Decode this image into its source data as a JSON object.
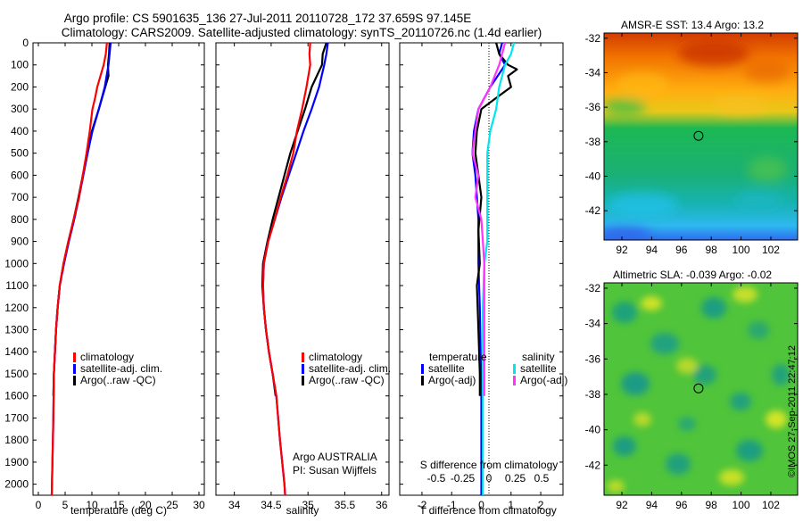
{
  "title": {
    "line1": "Argo profile: CS 5901635_136 27-Jul-2011 20110728_172 37.659S 97.145E",
    "line2": "Climatology: CARS2009. Satellite-adjusted climatology: synTS_20110726.nc (1.4d earlier)"
  },
  "depth_axis": {
    "ylim": [
      0,
      2050
    ],
    "ticks": [
      0,
      100,
      200,
      300,
      400,
      500,
      600,
      700,
      800,
      900,
      1000,
      1100,
      1200,
      1300,
      1400,
      1500,
      1600,
      1700,
      1800,
      1900,
      2000
    ]
  },
  "colors": {
    "climatology": "#ff0000",
    "satellite_adj": "#0000ff",
    "argo": "#000000",
    "salinity_satellite": "#00e5ee",
    "salinity_argo": "#ff33ff"
  },
  "chart_data": [
    {
      "type": "line",
      "xlabel": "temperature (deg C)",
      "xlim": [
        -1,
        31
      ],
      "xticks": [
        0,
        5,
        10,
        15,
        20,
        25,
        30
      ],
      "legend": [
        "climatology",
        "satellite-adj. clim.",
        "Argo(..raw -QC)"
      ],
      "series": [
        {
          "name": "climatology",
          "color": "#ff0000",
          "points": [
            [
              12.8,
              0
            ],
            [
              12.6,
              50
            ],
            [
              12.2,
              100
            ],
            [
              11.6,
              150
            ],
            [
              11.0,
              200
            ],
            [
              10.6,
              250
            ],
            [
              10.1,
              300
            ],
            [
              9.6,
              400
            ],
            [
              9.0,
              500
            ],
            [
              8.3,
              600
            ],
            [
              7.6,
              700
            ],
            [
              6.6,
              800
            ],
            [
              5.6,
              900
            ],
            [
              4.7,
              1000
            ],
            [
              4.0,
              1100
            ],
            [
              3.6,
              1200
            ],
            [
              3.3,
              1300
            ],
            [
              3.1,
              1400
            ],
            [
              2.9,
              1500
            ],
            [
              2.8,
              1700
            ],
            [
              2.5,
              2050
            ]
          ]
        },
        {
          "name": "satellite-adj. clim.",
          "color": "#0000ff",
          "points": [
            [
              13.5,
              0
            ],
            [
              13.3,
              50
            ],
            [
              13.1,
              100
            ],
            [
              12.4,
              200
            ],
            [
              11.3,
              300
            ],
            [
              10.1,
              400
            ],
            [
              9.2,
              500
            ],
            [
              8.4,
              600
            ],
            [
              7.6,
              700
            ],
            [
              6.7,
              800
            ],
            [
              5.7,
              900
            ],
            [
              4.8,
              1000
            ],
            [
              4.0,
              1100
            ],
            [
              3.6,
              1200
            ],
            [
              3.3,
              1300
            ],
            [
              3.1,
              1400
            ],
            [
              2.9,
              1500
            ],
            [
              2.8,
              1700
            ],
            [
              2.5,
              2050
            ]
          ]
        },
        {
          "name": "Argo(..raw -QC)",
          "color": "#000000",
          "points": [
            [
              13.3,
              0
            ],
            [
              13.2,
              50
            ],
            [
              13.0,
              100
            ],
            [
              13.1,
              150
            ],
            [
              12.5,
              200
            ],
            [
              11.3,
              300
            ],
            [
              10.0,
              400
            ],
            [
              9.2,
              500
            ],
            [
              8.3,
              600
            ],
            [
              7.5,
              700
            ],
            [
              6.6,
              800
            ],
            [
              5.6,
              900
            ],
            [
              4.7,
              1000
            ],
            [
              4.0,
              1100
            ],
            [
              3.6,
              1200
            ],
            [
              3.3,
              1300
            ],
            [
              3.1,
              1400
            ],
            [
              2.9,
              1500
            ],
            [
              2.8,
              1600
            ]
          ]
        }
      ]
    },
    {
      "type": "line",
      "xlabel": "salinity",
      "xlim": [
        33.75,
        36.1
      ],
      "xticks": [
        34,
        34.5,
        35,
        35.5,
        36
      ],
      "xticklabels": [
        "34",
        "34.5",
        "35",
        "35.5",
        "36"
      ],
      "legend": [
        "climatology",
        "satellite-adj. clim.",
        "Argo(..raw -QC)"
      ],
      "annotation": [
        "Argo AUSTRALIA",
        "PI: Susan Wijffels"
      ],
      "series": [
        {
          "name": "climatology",
          "color": "#ff0000",
          "points": [
            [
              35.03,
              0
            ],
            [
              35.02,
              50
            ],
            [
              35.03,
              100
            ],
            [
              34.98,
              200
            ],
            [
              34.92,
              300
            ],
            [
              34.85,
              400
            ],
            [
              34.8,
              500
            ],
            [
              34.72,
              600
            ],
            [
              34.63,
              700
            ],
            [
              34.55,
              800
            ],
            [
              34.46,
              900
            ],
            [
              34.4,
              1000
            ],
            [
              34.39,
              1100
            ],
            [
              34.4,
              1200
            ],
            [
              34.43,
              1300
            ],
            [
              34.47,
              1400
            ],
            [
              34.52,
              1500
            ],
            [
              34.57,
              1600
            ],
            [
              34.62,
              1800
            ],
            [
              34.68,
              2000
            ],
            [
              34.69,
              2050
            ]
          ]
        },
        {
          "name": "satellite-adj. clim.",
          "color": "#0000ff",
          "points": [
            [
              35.27,
              0
            ],
            [
              35.25,
              50
            ],
            [
              35.22,
              100
            ],
            [
              35.15,
              200
            ],
            [
              35.05,
              300
            ],
            [
              34.94,
              400
            ],
            [
              34.84,
              500
            ],
            [
              34.74,
              600
            ],
            [
              34.64,
              700
            ],
            [
              34.55,
              800
            ],
            [
              34.46,
              900
            ],
            [
              34.4,
              1000
            ],
            [
              34.39,
              1100
            ],
            [
              34.4,
              1200
            ],
            [
              34.43,
              1300
            ],
            [
              34.47,
              1400
            ],
            [
              34.52,
              1500
            ],
            [
              34.57,
              1600
            ],
            [
              34.62,
              1800
            ],
            [
              34.68,
              2000
            ],
            [
              34.69,
              2050
            ]
          ]
        },
        {
          "name": "Argo(..raw -QC)",
          "color": "#000000",
          "points": [
            [
              35.25,
              0
            ],
            [
              35.2,
              50
            ],
            [
              35.19,
              100
            ],
            [
              35.05,
              200
            ],
            [
              34.96,
              300
            ],
            [
              34.86,
              400
            ],
            [
              34.76,
              500
            ],
            [
              34.68,
              600
            ],
            [
              34.6,
              700
            ],
            [
              34.52,
              800
            ],
            [
              34.45,
              900
            ],
            [
              34.39,
              1000
            ],
            [
              34.38,
              1100
            ],
            [
              34.4,
              1200
            ],
            [
              34.43,
              1300
            ],
            [
              34.47,
              1400
            ],
            [
              34.52,
              1500
            ],
            [
              34.56,
              1600
            ]
          ]
        }
      ]
    },
    {
      "type": "line",
      "xlabel": "T difference from climatology",
      "xlabel2": "S difference from climatology",
      "xlim": [
        -2.75,
        2.75
      ],
      "xticks": [
        -2,
        -1,
        0,
        1,
        2
      ],
      "xticks2": [
        -0.5,
        -0.25,
        0,
        0.25,
        0.5
      ],
      "xticklabels2": [
        "-0.5",
        "-0.25",
        "0",
        "0.25",
        "0.5"
      ],
      "legend_temperature_title": "temperature",
      "legend_salinity_title": "salinity",
      "legend": [
        "satellite",
        "Argo(-adj)",
        "satellite",
        "Argo(-adj)"
      ],
      "series": [
        {
          "name": "satellite",
          "group": "temperature",
          "color": "#0000ff",
          "points": [
            [
              0.7,
              0
            ],
            [
              0.6,
              50
            ],
            [
              0.8,
              100
            ],
            [
              0.3,
              200
            ],
            [
              -0.1,
              300
            ],
            [
              -0.25,
              400
            ],
            [
              -0.3,
              500
            ],
            [
              -0.2,
              600
            ],
            [
              -0.1,
              800
            ],
            [
              -0.1,
              1000
            ],
            [
              -0.05,
              1200
            ],
            [
              0,
              1600
            ],
            [
              0,
              2050
            ]
          ]
        },
        {
          "name": "Argo(-adj)",
          "group": "temperature",
          "color": "#000000",
          "points": [
            [
              0.5,
              0
            ],
            [
              0.6,
              50
            ],
            [
              0.9,
              100
            ],
            [
              1.2,
              120
            ],
            [
              0.9,
              150
            ],
            [
              1.0,
              200
            ],
            [
              0.5,
              250
            ],
            [
              0,
              300
            ],
            [
              -0.15,
              400
            ],
            [
              -0.2,
              500
            ],
            [
              -0.1,
              600
            ],
            [
              0,
              700
            ],
            [
              -0.1,
              850
            ],
            [
              -0.05,
              1000
            ],
            [
              -0.15,
              1100
            ],
            [
              -0.1,
              1300
            ],
            [
              -0.05,
              1500
            ],
            [
              -0.05,
              1600
            ]
          ]
        },
        {
          "name": "satellite",
          "group": "salinity",
          "color": "#00e5ee",
          "points": [
            [
              1.1,
              0
            ],
            [
              1.0,
              50
            ],
            [
              0.8,
              100
            ],
            [
              0.6,
              200
            ],
            [
              0.5,
              300
            ],
            [
              0.3,
              400
            ],
            [
              0.2,
              500
            ],
            [
              0.2,
              700
            ],
            [
              0.2,
              900
            ],
            [
              0.1,
              1000
            ],
            [
              0.05,
              1200
            ],
            [
              0.05,
              1600
            ],
            [
              0.05,
              2050
            ]
          ]
        },
        {
          "name": "Argo(-adj)",
          "group": "salinity",
          "color": "#ff33ff",
          "points": [
            [
              0.8,
              0
            ],
            [
              0.7,
              50
            ],
            [
              0.6,
              100
            ],
            [
              0.3,
              200
            ],
            [
              -0.1,
              300
            ],
            [
              -0.2,
              400
            ],
            [
              -0.3,
              500
            ],
            [
              -0.1,
              600
            ],
            [
              -0.2,
              700
            ],
            [
              0,
              800
            ],
            [
              0.05,
              900
            ],
            [
              0.1,
              1000
            ],
            [
              0.1,
              1200
            ],
            [
              0.1,
              1600
            ]
          ]
        }
      ]
    },
    {
      "type": "heatmap",
      "title": "AMSR-E SST: 13.4  Argo: 13.2",
      "xlim": [
        90.8,
        103.8
      ],
      "ylim": [
        -43.7,
        -31.7
      ],
      "xticks": [
        92,
        94,
        96,
        98,
        100,
        102
      ],
      "yticks": [
        -32,
        -34,
        -36,
        -38,
        -40,
        -42
      ],
      "marker": [
        97.145,
        -37.659
      ]
    },
    {
      "type": "heatmap",
      "title": "Altimetric SLA: -0.039  Argo: -0.02",
      "xlim": [
        90.8,
        103.8
      ],
      "ylim": [
        -43.7,
        -31.7
      ],
      "xticks": [
        92,
        94,
        96,
        98,
        100,
        102
      ],
      "yticks": [
        -32,
        -34,
        -36,
        -38,
        -40,
        -42
      ],
      "marker": [
        97.145,
        -37.659
      ]
    }
  ],
  "footer": {
    "credit": "©IMOS 27-Sep-2011 22:47:12"
  }
}
